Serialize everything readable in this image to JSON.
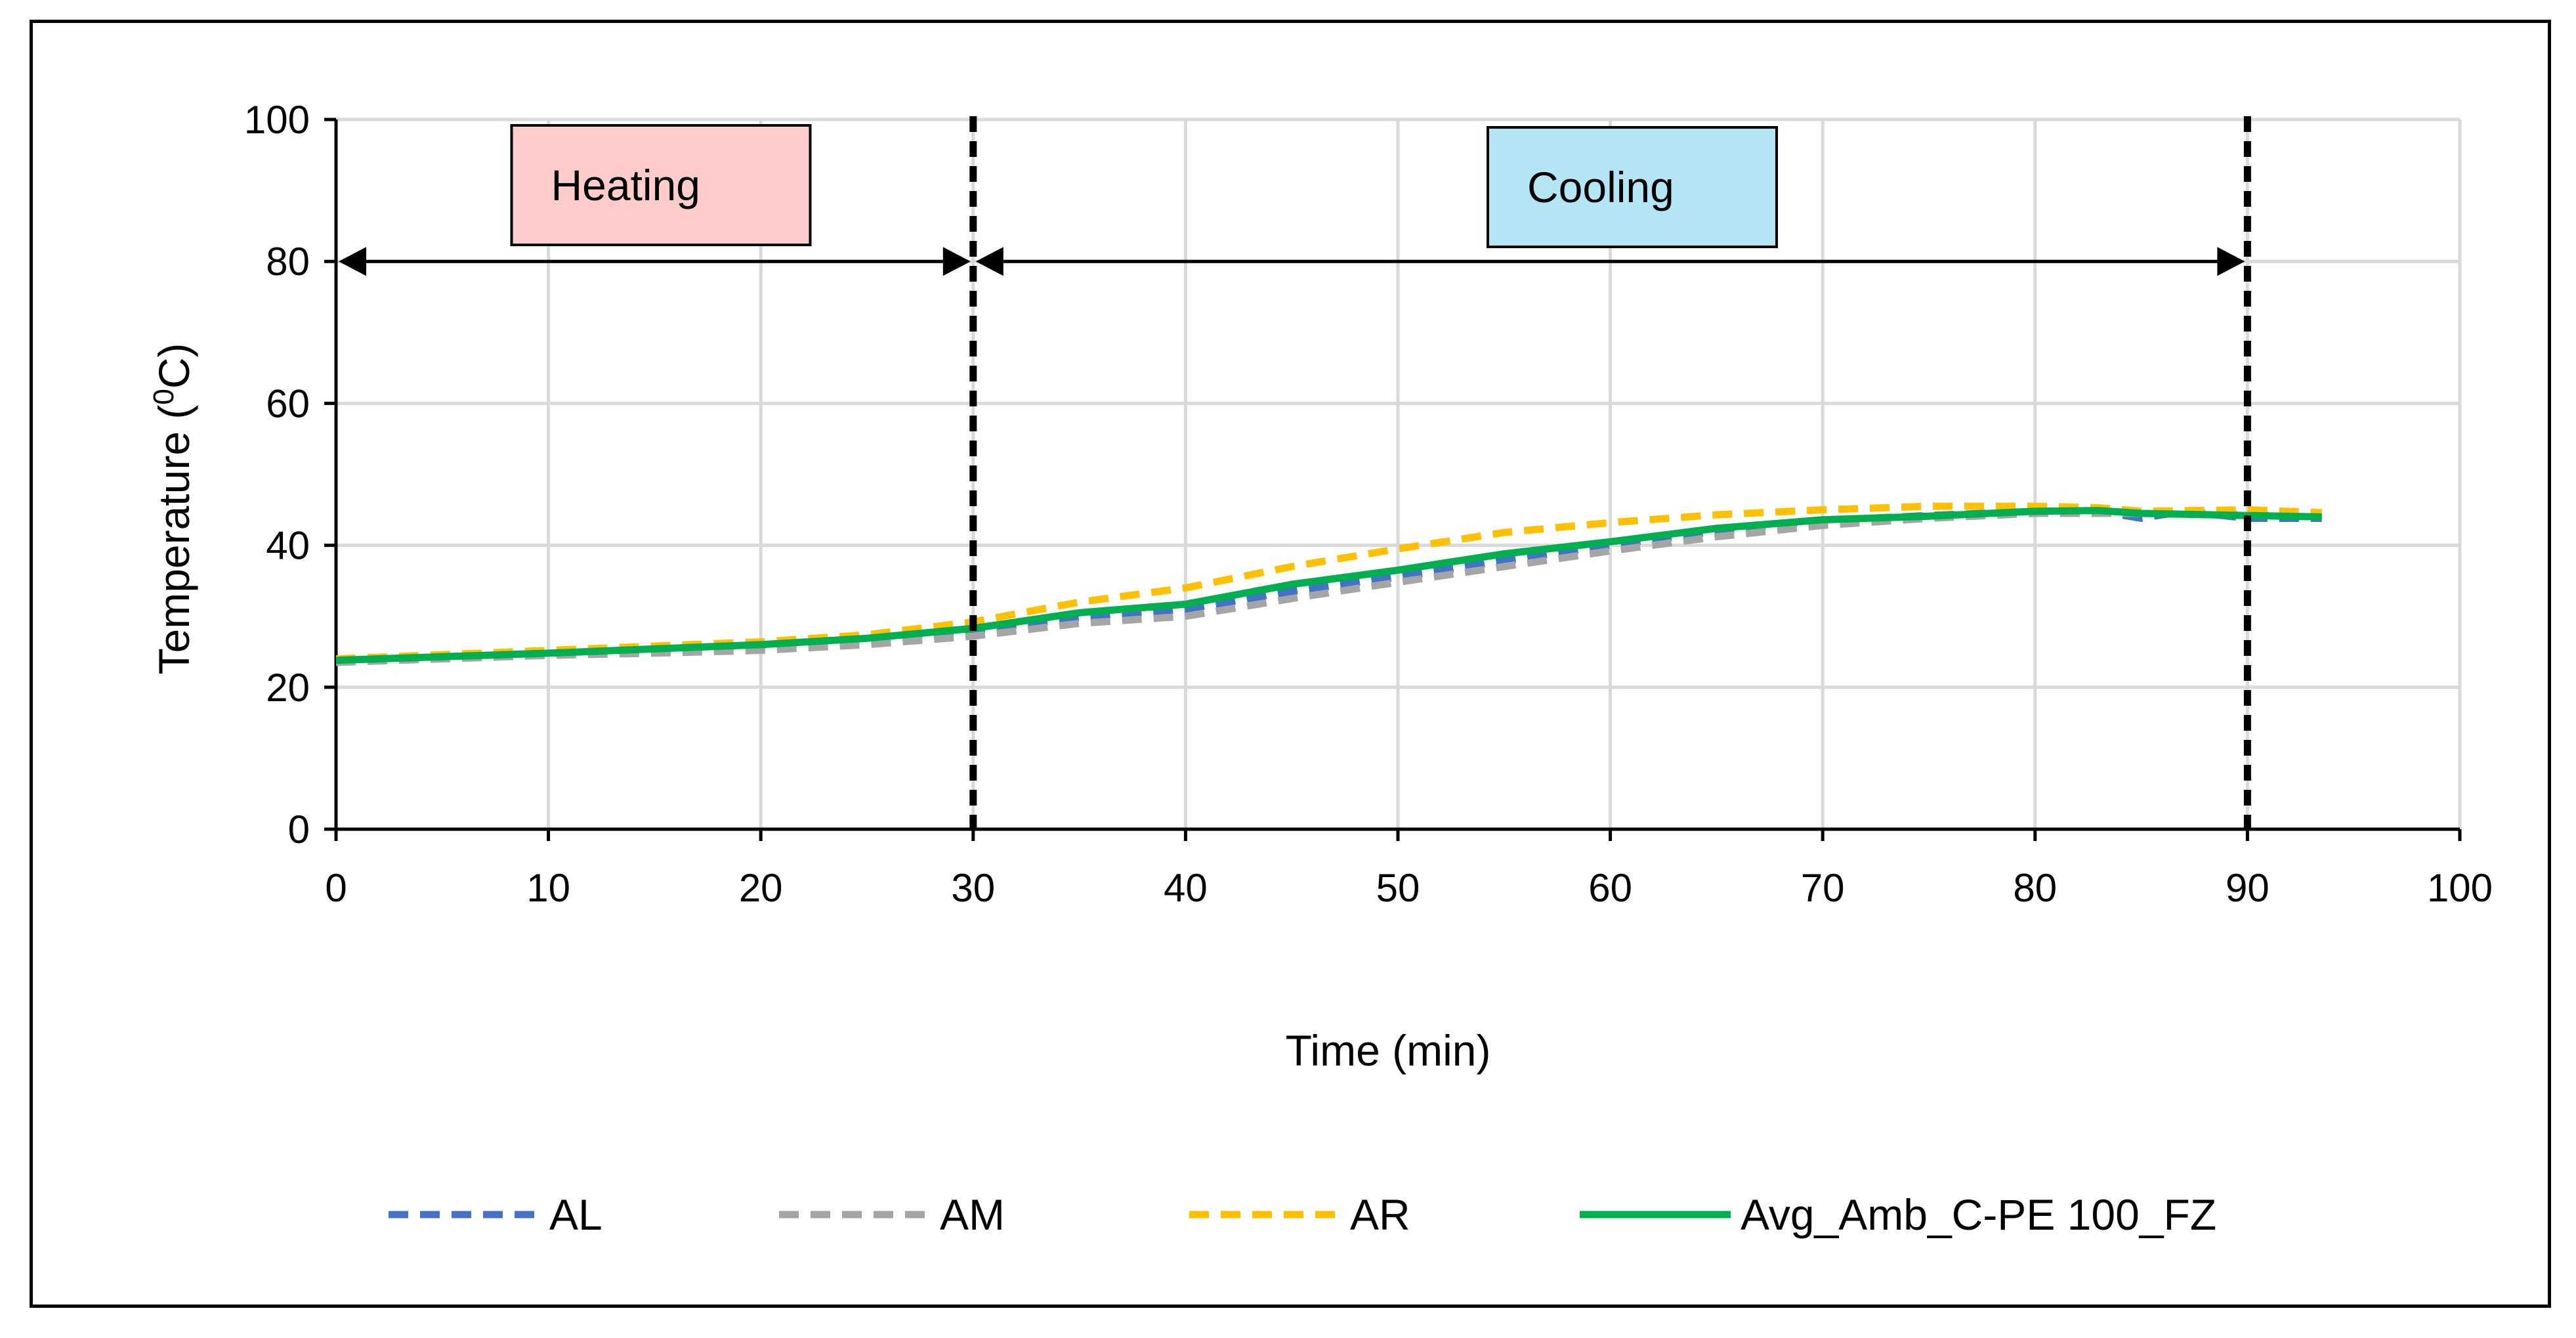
{
  "chart_data": {
    "type": "line",
    "title": "",
    "xlabel": "Time (min)",
    "ylabel_main": "Temperature (",
    "ylabel_sup": "0",
    "ylabel_unit": "C)",
    "xlim": [
      0,
      100
    ],
    "ylim": [
      0,
      100
    ],
    "xticks": [
      "0",
      "10",
      "20",
      "30",
      "40",
      "50",
      "60",
      "70",
      "80",
      "90",
      "100"
    ],
    "yticks": [
      "0",
      "20",
      "40",
      "60",
      "80",
      "100"
    ],
    "grid": true,
    "legend_position": "bottom",
    "phases": [
      {
        "label": "Heating",
        "start": 0,
        "end": 30,
        "color": "#FFCCCC"
      },
      {
        "label": "Cooling",
        "start": 30,
        "end": 90,
        "color": "#B3E5F5"
      }
    ],
    "vlines": [
      30,
      90
    ],
    "series": [
      {
        "name": "AL",
        "color": "#4472C4",
        "dash": true,
        "x": [
          0,
          5,
          10,
          15,
          20,
          25,
          30,
          35,
          40,
          45,
          50,
          55,
          60,
          65,
          70,
          75,
          80,
          83,
          85,
          87,
          90,
          93.5
        ],
        "y": [
          23.8,
          24.3,
          24.8,
          25.2,
          25.8,
          26.8,
          28.0,
          29.8,
          31.0,
          33.5,
          35.5,
          37.8,
          40.0,
          42.0,
          43.5,
          44.2,
          44.8,
          44.8,
          43.8,
          44.8,
          43.8,
          43.8
        ]
      },
      {
        "name": "AM",
        "color": "#A5A5A5",
        "dash": true,
        "x": [
          0,
          5,
          10,
          15,
          20,
          25,
          30,
          35,
          40,
          45,
          50,
          55,
          60,
          65,
          70,
          75,
          80,
          85,
          90,
          93.5
        ],
        "y": [
          23.5,
          24.0,
          24.5,
          24.8,
          25.2,
          26.0,
          27.2,
          29.0,
          30.0,
          32.5,
          34.8,
          37.0,
          39.2,
          41.2,
          42.8,
          43.8,
          44.5,
          44.5,
          44.3,
          44.0
        ]
      },
      {
        "name": "AR",
        "color": "#FFC000",
        "dash": true,
        "x": [
          0,
          5,
          10,
          15,
          20,
          25,
          30,
          35,
          40,
          45,
          50,
          55,
          60,
          65,
          70,
          75,
          80,
          83,
          85,
          90,
          93.5
        ],
        "y": [
          24.0,
          24.6,
          25.2,
          25.8,
          26.4,
          27.4,
          29.2,
          32.0,
          34.0,
          37.0,
          39.5,
          41.8,
          43.2,
          44.3,
          45.0,
          45.5,
          45.5,
          45.3,
          44.8,
          45.0,
          44.6
        ]
      },
      {
        "name": "Avg_Amb_C-PE 100_FZ",
        "color": "#00B050",
        "dash": false,
        "x": [
          0,
          5,
          10,
          15,
          20,
          25,
          30,
          35,
          40,
          45,
          50,
          55,
          60,
          65,
          70,
          75,
          80,
          83,
          85,
          90,
          93.5
        ],
        "y": [
          23.8,
          24.3,
          24.8,
          25.4,
          26.0,
          26.9,
          28.3,
          30.5,
          31.7,
          34.5,
          36.5,
          38.8,
          40.5,
          42.4,
          43.6,
          44.1,
          44.8,
          44.9,
          44.5,
          44.2,
          44.0
        ]
      }
    ]
  }
}
